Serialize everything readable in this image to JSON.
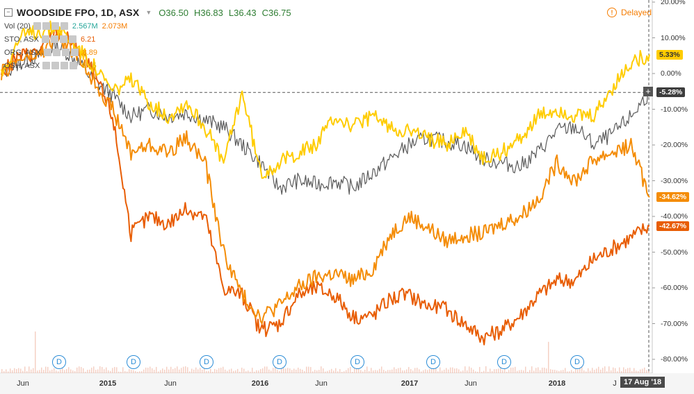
{
  "header": {
    "symbol": "WOODSIDE FPO, 1D, ASX",
    "open": "O36.50",
    "high": "H36.83",
    "low": "L36.43",
    "close": "C36.75",
    "delayed": "Delayed"
  },
  "legend": {
    "volume": {
      "label": "Vol (20)",
      "v1": "2.567M",
      "v2": "2.073M"
    },
    "rows": [
      {
        "label": "STO, ASX",
        "value": "6.21",
        "color": "#e85d04"
      },
      {
        "label": "ORG, ASX",
        "value": "8.89",
        "color": "#f48c06"
      },
      {
        "label": "OSH, ASX",
        "value": "9.15",
        "color": "#ffcc00"
      }
    ]
  },
  "tags": {
    "osh": "5.33%",
    "wpl": "-5.28%",
    "org": "-34.62%",
    "sto": "-42.67%",
    "date": "17 Aug '18"
  },
  "markers": {
    "dividend": "D"
  },
  "chart_data": {
    "type": "line",
    "y_unit": "%",
    "y_ticks": [
      "20.00%",
      "10.00%",
      "0.00%",
      "-10.00%",
      "-20.00%",
      "-30.00%",
      "-40.00%",
      "-50.00%",
      "-60.00%",
      "-70.00%",
      "-80.00%"
    ],
    "x_ticks": [
      "Jun",
      "2015",
      "Jun",
      "2016",
      "Jun",
      "2017",
      "Jun",
      "2018",
      "J"
    ],
    "ylim": [
      -84,
      21
    ],
    "x": [
      "2014-04-01",
      "2014-05-15",
      "2014-07-01",
      "2014-08-15",
      "2014-10-01",
      "2014-11-15",
      "2015-01-01",
      "2015-02-15",
      "2015-04-01",
      "2015-05-15",
      "2015-07-01",
      "2015-08-15",
      "2015-10-01",
      "2015-11-15",
      "2016-01-01",
      "2016-02-15",
      "2016-04-01",
      "2016-05-15",
      "2016-07-01",
      "2016-08-15",
      "2016-10-01",
      "2016-11-15",
      "2017-01-01",
      "2017-02-15",
      "2017-04-01",
      "2017-05-15",
      "2017-07-01",
      "2017-08-15",
      "2017-10-01",
      "2017-11-15",
      "2018-01-01",
      "2018-02-15",
      "2018-04-01",
      "2018-05-15",
      "2018-07-01",
      "2018-08-17"
    ],
    "series": [
      {
        "name": "WOODSIDE FPO",
        "color": "#5a5a5a",
        "values": [
          0,
          3,
          5,
          8,
          4,
          -2,
          -6,
          -12,
          -10,
          -12,
          -11,
          -13,
          -15,
          -20,
          -25,
          -32,
          -30,
          -31,
          -30,
          -32,
          -28,
          -24,
          -20,
          -18,
          -19,
          -20,
          -24,
          -25,
          -26,
          -22,
          -16,
          -15,
          -20,
          -17,
          -12,
          -5.28
        ]
      },
      {
        "name": "STO, ASX",
        "color": "#e85d04",
        "values": [
          0,
          5,
          6,
          12,
          8,
          0,
          -12,
          -45,
          -40,
          -42,
          -38,
          -40,
          -60,
          -62,
          -72,
          -70,
          -62,
          -60,
          -62,
          -68,
          -68,
          -63,
          -62,
          -65,
          -66,
          -70,
          -74,
          -72,
          -68,
          -62,
          -58,
          -58,
          -52,
          -49,
          -46,
          -42.67
        ]
      },
      {
        "name": "ORG, ASX",
        "color": "#f48c06",
        "values": [
          0,
          4,
          5,
          10,
          6,
          -2,
          -10,
          -22,
          -20,
          -22,
          -18,
          -25,
          -50,
          -62,
          -68,
          -65,
          -60,
          -57,
          -56,
          -58,
          -55,
          -45,
          -40,
          -43,
          -47,
          -45,
          -45,
          -42,
          -40,
          -35,
          -25,
          -30,
          -24,
          -22,
          -20,
          -34.62
        ]
      },
      {
        "name": "OSH, ASX",
        "color": "#ffcc00",
        "values": [
          0,
          10,
          12,
          13,
          8,
          2,
          -5,
          -2,
          -8,
          -12,
          -8,
          -15,
          -25,
          -5,
          -28,
          -25,
          -22,
          -20,
          -12,
          -15,
          -12,
          -15,
          -16,
          -18,
          -20,
          -16,
          -24,
          -22,
          -18,
          -12,
          -10,
          -12,
          -12,
          -4,
          3,
          5.33
        ]
      }
    ]
  }
}
